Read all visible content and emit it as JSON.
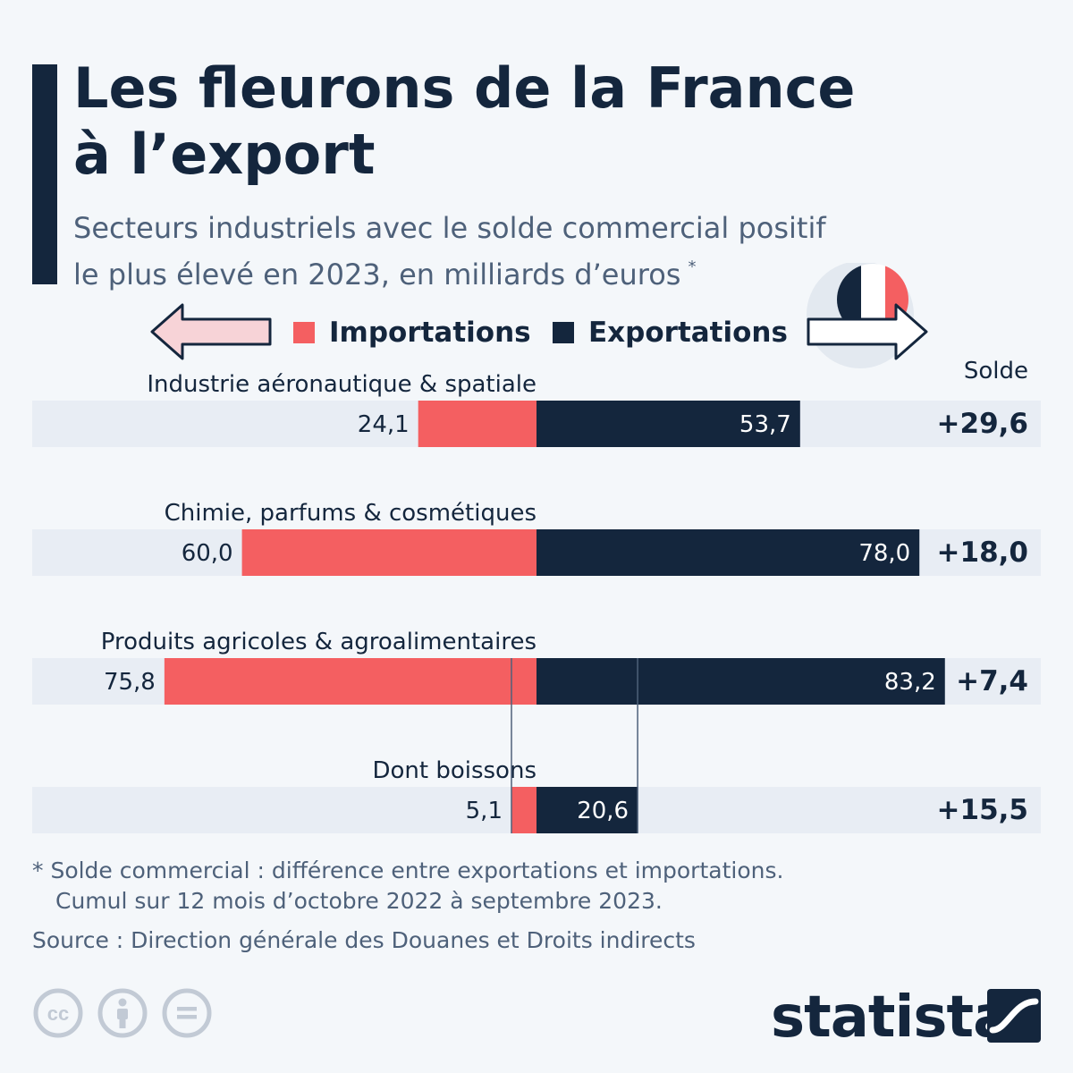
{
  "header": {
    "title_line1": "Les fleurons de la France",
    "title_line2": "à l’export",
    "subtitle_line1": "Secteurs industriels avec le solde commercial positif",
    "subtitle_line2": "le plus élevé en 2023, en milliards d’euros",
    "subtitle_asterisk": "*"
  },
  "legend": {
    "imports": "Importations",
    "exports": "Exportations"
  },
  "colors": {
    "imports": "#f45f61",
    "exports": "#14263d",
    "track": "#e8edf4",
    "dark": "#14263d",
    "import_arrow_fill": "#f7d3d7"
  },
  "chart_data": {
    "type": "bar",
    "orientation": "horizontal-diverging",
    "solde_header": "Solde",
    "categories": [
      "Industrie aéronautique & spatiale",
      "Chimie, parfums & cosmétiques",
      "Produits agricoles & agroalimentaires",
      "Dont boissons"
    ],
    "series": [
      {
        "name": "Importations",
        "values": [
          24.1,
          60.0,
          75.8,
          5.1
        ],
        "labels": [
          "24,1",
          "60,0",
          "75,8",
          "5,1"
        ]
      },
      {
        "name": "Exportations",
        "values": [
          53.7,
          78.0,
          83.2,
          20.6
        ],
        "labels": [
          "53,7",
          "78,0",
          "83,2",
          "20,6"
        ]
      }
    ],
    "solde": [
      "+29,6",
      "+18,0",
      "+7,4",
      "+15,5"
    ]
  },
  "footer": {
    "footnote_line1": "* Solde commercial : différence entre exportations et importations.",
    "footnote_line2": "Cumul sur 12 mois d’octobre 2022 à septembre 2023.",
    "source": "Source : Direction générale des Douanes et Droits indirects",
    "brand": "statista",
    "license_icons": [
      "cc-icon",
      "attribution-icon",
      "no-derivatives-icon"
    ]
  }
}
